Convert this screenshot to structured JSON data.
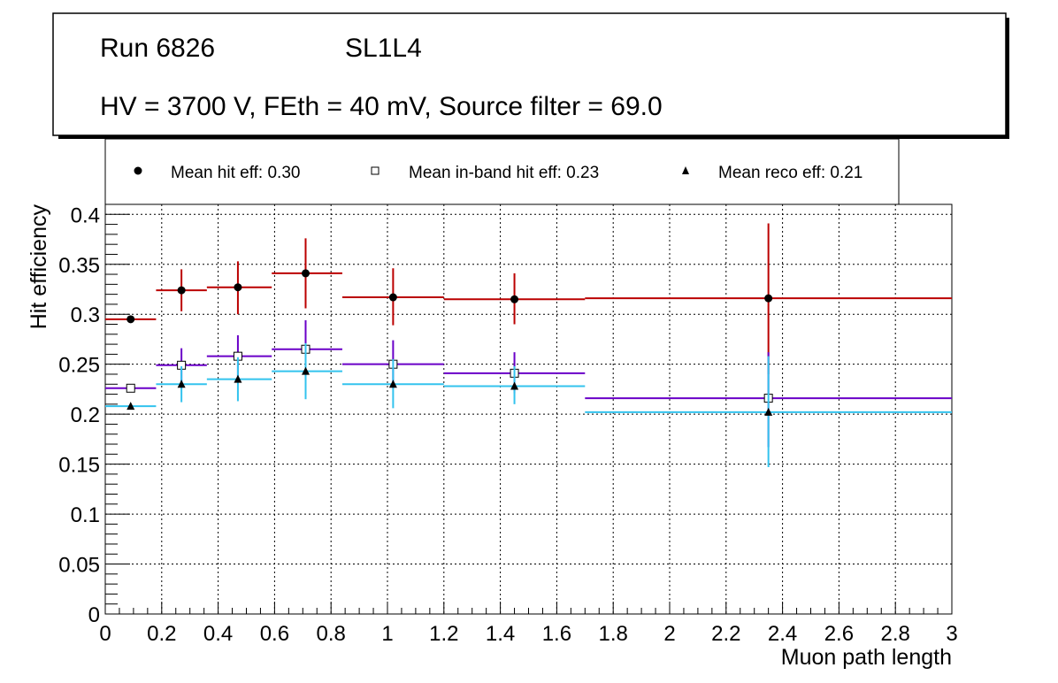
{
  "title_box": {
    "line1_run": "Run 6826",
    "line1_layer": "SL1L4",
    "line2": "HV = 3700 V, FEth = 40 mV, Source filter = 69.0"
  },
  "legend": {
    "items": [
      {
        "label": "Mean hit  eff: 0.30",
        "marker": "filled-circle"
      },
      {
        "label": "Mean in-band hit eff: 0.23",
        "marker": "open-square"
      },
      {
        "label": "Mean reco eff: 0.21",
        "marker": "filled-triangle"
      }
    ]
  },
  "chart_data": {
    "type": "scatter",
    "title": "",
    "xlabel": "Muon path length",
    "ylabel": "Hit efficiency",
    "xlim": [
      0,
      3
    ],
    "ylim": [
      0,
      0.41
    ],
    "grid": true,
    "x_ticks": [
      "0",
      "0.2",
      "0.4",
      "0.6",
      "0.8",
      "1",
      "1.2",
      "1.4",
      "1.6",
      "1.8",
      "2",
      "2.2",
      "2.4",
      "2.6",
      "2.8",
      "3"
    ],
    "y_ticks": [
      "0",
      "0.05",
      "0.1",
      "0.15",
      "0.2",
      "0.25",
      "0.3",
      "0.35",
      "0.4"
    ],
    "series": [
      {
        "name": "Mean hit  eff: 0.30",
        "color": "#bb0000",
        "marker": "filled-circle",
        "points": [
          {
            "x": 0.09,
            "xlo": 0.0,
            "xhi": 0.18,
            "y": 0.295,
            "ylo": 0.293,
            "yhi": 0.297
          },
          {
            "x": 0.27,
            "xlo": 0.18,
            "xhi": 0.36,
            "y": 0.324,
            "ylo": 0.303,
            "yhi": 0.345
          },
          {
            "x": 0.47,
            "xlo": 0.36,
            "xhi": 0.59,
            "y": 0.327,
            "ylo": 0.3,
            "yhi": 0.353
          },
          {
            "x": 0.71,
            "xlo": 0.59,
            "xhi": 0.84,
            "y": 0.341,
            "ylo": 0.306,
            "yhi": 0.376
          },
          {
            "x": 1.02,
            "xlo": 0.84,
            "xhi": 1.2,
            "y": 0.317,
            "ylo": 0.289,
            "yhi": 0.346
          },
          {
            "x": 1.45,
            "xlo": 1.2,
            "xhi": 1.7,
            "y": 0.315,
            "ylo": 0.29,
            "yhi": 0.341
          },
          {
            "x": 2.35,
            "xlo": 1.7,
            "xhi": 3.0,
            "y": 0.316,
            "ylo": 0.24,
            "yhi": 0.391
          }
        ]
      },
      {
        "name": "Mean in-band hit eff: 0.23",
        "color": "#6a00c8",
        "marker": "open-square",
        "points": [
          {
            "x": 0.09,
            "xlo": 0.0,
            "xhi": 0.18,
            "y": 0.226,
            "ylo": 0.224,
            "yhi": 0.228
          },
          {
            "x": 0.27,
            "xlo": 0.18,
            "xhi": 0.36,
            "y": 0.249,
            "ylo": 0.232,
            "yhi": 0.266
          },
          {
            "x": 0.47,
            "xlo": 0.36,
            "xhi": 0.59,
            "y": 0.258,
            "ylo": 0.238,
            "yhi": 0.279
          },
          {
            "x": 0.71,
            "xlo": 0.59,
            "xhi": 0.84,
            "y": 0.265,
            "ylo": 0.236,
            "yhi": 0.294
          },
          {
            "x": 1.02,
            "xlo": 0.84,
            "xhi": 1.2,
            "y": 0.25,
            "ylo": 0.226,
            "yhi": 0.274
          },
          {
            "x": 1.45,
            "xlo": 1.2,
            "xhi": 1.7,
            "y": 0.241,
            "ylo": 0.221,
            "yhi": 0.262
          },
          {
            "x": 2.35,
            "xlo": 1.7,
            "xhi": 3.0,
            "y": 0.216,
            "ylo": 0.167,
            "yhi": 0.262
          }
        ]
      },
      {
        "name": "Mean reco eff: 0.21",
        "color": "#33c3ee",
        "marker": "filled-triangle",
        "points": [
          {
            "x": 0.09,
            "xlo": 0.0,
            "xhi": 0.18,
            "y": 0.208,
            "ylo": 0.206,
            "yhi": 0.21
          },
          {
            "x": 0.27,
            "xlo": 0.18,
            "xhi": 0.36,
            "y": 0.23,
            "ylo": 0.212,
            "yhi": 0.248
          },
          {
            "x": 0.47,
            "xlo": 0.36,
            "xhi": 0.59,
            "y": 0.235,
            "ylo": 0.213,
            "yhi": 0.257
          },
          {
            "x": 0.71,
            "xlo": 0.59,
            "xhi": 0.84,
            "y": 0.243,
            "ylo": 0.215,
            "yhi": 0.271
          },
          {
            "x": 1.02,
            "xlo": 0.84,
            "xhi": 1.2,
            "y": 0.23,
            "ylo": 0.206,
            "yhi": 0.255
          },
          {
            "x": 1.45,
            "xlo": 1.2,
            "xhi": 1.7,
            "y": 0.228,
            "ylo": 0.21,
            "yhi": 0.248
          },
          {
            "x": 2.35,
            "xlo": 1.7,
            "xhi": 3.0,
            "y": 0.202,
            "ylo": 0.147,
            "yhi": 0.258
          }
        ]
      }
    ]
  }
}
